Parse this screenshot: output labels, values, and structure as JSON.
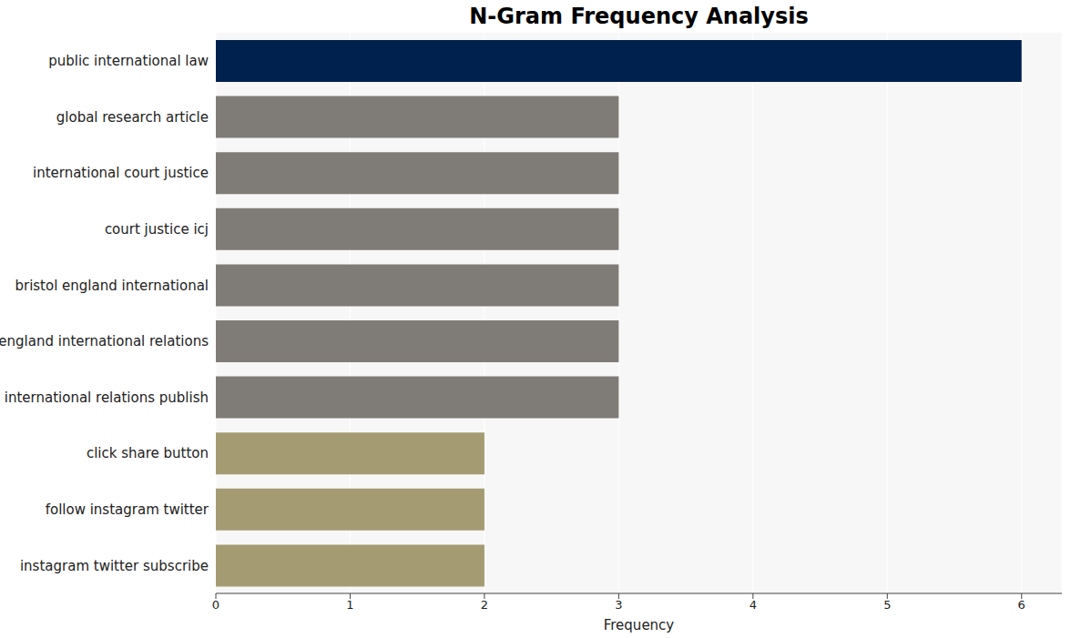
{
  "chart_data": {
    "type": "bar",
    "title": "N-Gram Frequency Analysis",
    "orientation": "horizontal",
    "x_label": "Frequency",
    "categories": [
      "public international law",
      "global research article",
      "international court justice",
      "court justice icj",
      "bristol england international",
      "england international relations",
      "international relations publish",
      "click share button",
      "follow instagram twitter",
      "instagram twitter subscribe"
    ],
    "values": [
      6,
      3,
      3,
      3,
      3,
      3,
      3,
      2,
      2,
      2
    ],
    "colors": [
      "#00214d",
      "#7f7c77",
      "#7f7c77",
      "#7f7c77",
      "#7f7c77",
      "#7f7c77",
      "#7f7c77",
      "#a59b73",
      "#a59b73",
      "#a59b73"
    ],
    "xlim": [
      0,
      6.3
    ],
    "xticks": [
      0,
      1,
      2,
      3,
      4,
      5,
      6
    ],
    "grid": true
  }
}
